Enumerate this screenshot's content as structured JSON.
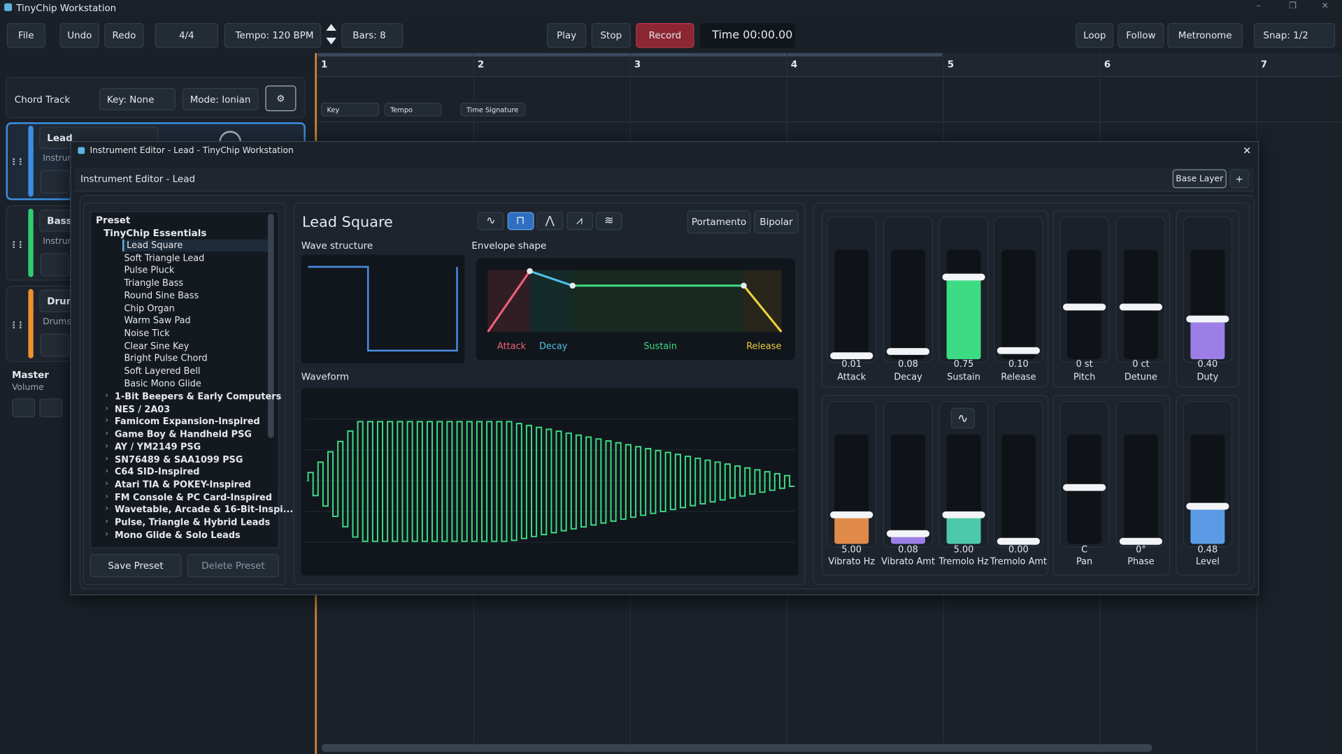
{
  "title_bar": {
    "title": "TinyChip Workstation"
  },
  "toolbar": {
    "file": "File",
    "undo": "Undo",
    "redo": "Redo",
    "time_signature": "4/4",
    "tempo": "Tempo: 120 BPM",
    "bars": "Bars: 8",
    "play": "Play",
    "stop": "Stop",
    "record": "Record",
    "time": "Time 00:00.00",
    "loop": "Loop",
    "follow": "Follow",
    "metronome": "Metronome",
    "snap": "Snap: 1/2"
  },
  "timeline": {
    "bars": [
      "1",
      "2",
      "3",
      "4",
      "5",
      "6",
      "7"
    ],
    "markers": [
      "Key",
      "Tempo",
      "Time Signature"
    ]
  },
  "chord_track": {
    "label": "Chord Track",
    "key": "Key: None",
    "mode": "Mode: Ionian"
  },
  "tracks": [
    {
      "name": "Lead",
      "sub": "Instrum"
    },
    {
      "name": "Bass",
      "sub": "Instrum"
    },
    {
      "name": "Drum",
      "sub": "Drums"
    }
  ],
  "master": {
    "label": "Master",
    "sub": "Volume"
  },
  "editor": {
    "window_title": "Instrument Editor - Lead - TinyChip Workstation",
    "header": "Instrument Editor - Lead",
    "base_layer": "Base Layer",
    "add_layer": "+",
    "preset_root": "Preset",
    "preset_group": "TinyChip Essentials",
    "presets": [
      "Lead Square",
      "Soft Triangle Lead",
      "Pulse Pluck",
      "Triangle Bass",
      "Round Sine Bass",
      "Chip Organ",
      "Warm Saw Pad",
      "Noise Tick",
      "Clear Sine Key",
      "Bright Pulse Chord",
      "Soft Layered Bell",
      "Basic Mono Glide"
    ],
    "categories": [
      "1-Bit Beepers & Early Computers",
      "NES / 2A03",
      "Famicom Expansion-Inspired",
      "Game Boy & Handheld PSG",
      "AY / YM2149 PSG",
      "SN76489 & SAA1099 PSG",
      "C64 SID-Inspired",
      "Atari TIA & POKEY-Inspired",
      "FM Console & PC Card-Inspired",
      "Wavetable, Arcade & 16-Bit-Inspi...",
      "Pulse, Triangle & Hybrid Leads",
      "Mono Glide & Solo Leads"
    ],
    "save_preset": "Save Preset",
    "delete_preset": "Delete Preset",
    "instrument_name": "Lead Square",
    "portamento": "Portamento",
    "bipolar": "Bipolar",
    "wave_structure": "Wave structure",
    "envelope_shape": "Envelope shape",
    "waveform": "Waveform",
    "envelope_labels": [
      "Attack",
      "Decay",
      "Sustain",
      "Release"
    ],
    "sliders_top": [
      {
        "value": "0.01",
        "label": "Attack"
      },
      {
        "value": "0.08",
        "label": "Decay"
      },
      {
        "value": "0.75",
        "label": "Sustain"
      },
      {
        "value": "0.10",
        "label": "Release"
      },
      {
        "value": "0 st",
        "label": "Pitch"
      },
      {
        "value": "0 ct",
        "label": "Detune"
      },
      {
        "value": "0.40",
        "label": "Duty"
      }
    ],
    "sliders_bottom": [
      {
        "value": "5.00",
        "label": "Vibrato Hz"
      },
      {
        "value": "0.08",
        "label": "Vibrato Amt"
      },
      {
        "value": "5.00",
        "label": "Tremolo Hz"
      },
      {
        "value": "0.00",
        "label": "Tremolo Amt"
      },
      {
        "value": "C",
        "label": "Pan"
      },
      {
        "value": "0°",
        "label": "Phase"
      },
      {
        "value": "0.48",
        "label": "Level"
      }
    ]
  }
}
